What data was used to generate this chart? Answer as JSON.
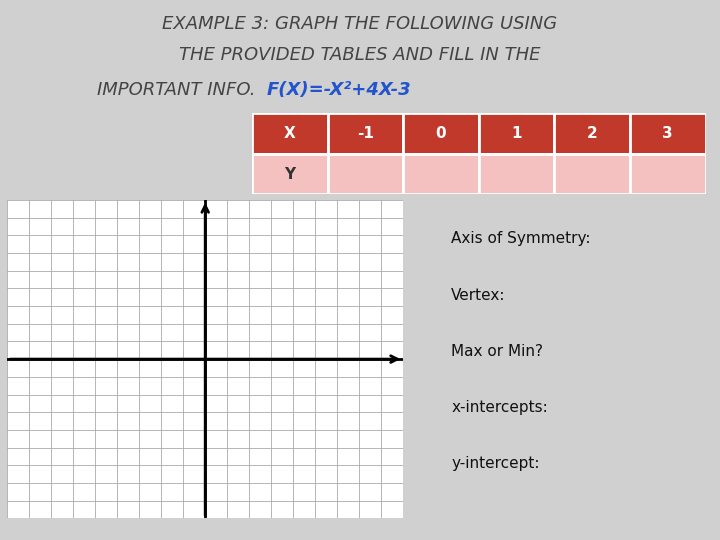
{
  "title_line1": "EXAMPLE 3: GRAPH THE FOLLOWING USING",
  "title_line2": "THE PROVIDED TABLES AND FILL IN THE",
  "title_line3_plain": "IMPORTANT INFO.  ",
  "title_line3_bold": "F(X)=-X²+4X-3",
  "table_headers": [
    "X",
    "-1",
    "0",
    "1",
    "2",
    "3"
  ],
  "table_row_label": "Y",
  "header_bg": "#C0392B",
  "header_text": "#FFFFFF",
  "row_bg": "#F5C0C0",
  "info_labels": [
    "Axis of Symmetry:",
    "Vertex:",
    "Max or Min?",
    "x-intercepts:",
    "y-intercept:"
  ],
  "bg_color": "#D0D0D0",
  "title_box_color": "#E8E8E8",
  "grid_color": "#AAAAAA",
  "axis_color": "#000000"
}
